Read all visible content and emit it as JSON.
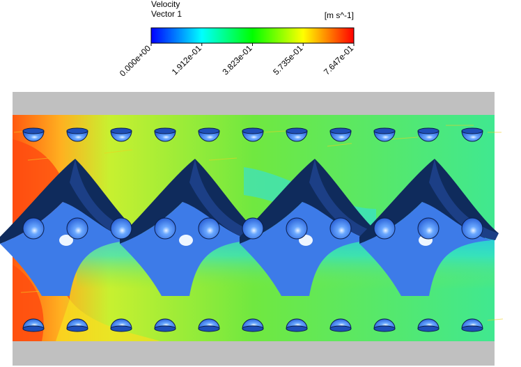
{
  "legend": {
    "title": "Velocity",
    "variable": "Vector 1",
    "unit": "[m s^-1]",
    "ticks": [
      "0.000e+00",
      "1.912e-01",
      "3.823e-01",
      "5.735e-01",
      "7.647e-01"
    ]
  }
}
